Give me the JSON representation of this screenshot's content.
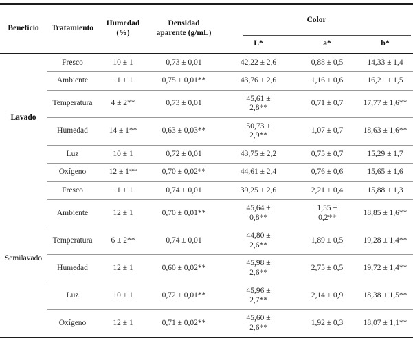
{
  "table": {
    "headers": {
      "beneficio": "Beneficio",
      "tratamiento": "Tratamiento",
      "humedad": "Humedad\n(%)",
      "densidad": "Densidad\naparente (g/mL)",
      "color_group": "Color",
      "l": "L*",
      "a": "a*",
      "b": "b*"
    },
    "groups": [
      {
        "label": "Lavado"
      },
      {
        "label": "Semilavado"
      }
    ],
    "rows": [
      {
        "tratamiento": "Fresco",
        "humedad": "10 ± 1",
        "densidad": "0,73 ± 0,01",
        "l": "42,22 ± 2,6",
        "a": "0,88 ± 0,5",
        "b": "14,33 ± 1,4"
      },
      {
        "tratamiento": "Ambiente",
        "humedad": "11 ± 1",
        "densidad": "0,75 ± 0,01**",
        "l": "43,76 ± 2,6",
        "a": "1,16 ± 0,6",
        "b": "16,21 ± 1,5"
      },
      {
        "tratamiento": "Temperatura",
        "humedad": "4 ± 2**",
        "densidad": "0,73 ± 0,01",
        "l": "45,61 ±\n2,8**",
        "a": "0,71 ± 0,7",
        "b": "17,77 ± 1,6**"
      },
      {
        "tratamiento": "Humedad",
        "humedad": "14 ± 1**",
        "densidad": "0,63 ± 0,03**",
        "l": "50,73 ±\n2,9**",
        "a": "1,07 ± 0,7",
        "b": "18,63 ± 1,6**"
      },
      {
        "tratamiento": "Luz",
        "humedad": "10 ± 1",
        "densidad": "0,72 ± 0,01",
        "l": "43,75 ± 2,2",
        "a": "0,75 ± 0,7",
        "b": "15,29 ± 1,7"
      },
      {
        "tratamiento": "Oxígeno",
        "humedad": "12 ± 1**",
        "densidad": "0,70 ± 0,02**",
        "l": "44,61 ± 2,4",
        "a": "0,76 ± 0,6",
        "b": "15,65 ± 1,6"
      },
      {
        "tratamiento": "Fresco",
        "humedad": "11 ± 1",
        "densidad": "0,74 ± 0,01",
        "l": "39,25 ± 2,6",
        "a": "2,21 ± 0,4",
        "b": "15,88 ± 1,3"
      },
      {
        "tratamiento": "Ambiente",
        "humedad": "12 ± 1",
        "densidad": "0,70 ± 0,01**",
        "l": "45,64 ±\n0,8**",
        "a": "1,55 ±\n0,2**",
        "b": "18,85 ± 1,6**"
      },
      {
        "tratamiento": "Temperatura",
        "humedad": "6 ± 2**",
        "densidad": "0,74 ± 0,01",
        "l": "44,80 ±\n2,6**",
        "a": "1,89 ± 0,5",
        "b": "19,28 ± 1,4**"
      },
      {
        "tratamiento": "Humedad",
        "humedad": "12 ± 1",
        "densidad": "0,60 ± 0,02**",
        "l": "45,98 ±\n2,6**",
        "a": "2,75 ± 0,5",
        "b": "19,72 ± 1,4**"
      },
      {
        "tratamiento": "Luz",
        "humedad": "10 ± 1",
        "densidad": "0,72 ± 0,01**",
        "l": "45,96 ±\n2,7**",
        "a": "2,14 ± 0,9",
        "b": "18,38 ± 1,5**"
      },
      {
        "tratamiento": "Oxígeno",
        "humedad": "12 ± 1",
        "densidad": "0,71 ± 0,02**",
        "l": "45,60 ±\n2,6**",
        "a": "1,92 ± 0,3",
        "b": "18,07 ± 1,1**"
      }
    ]
  }
}
